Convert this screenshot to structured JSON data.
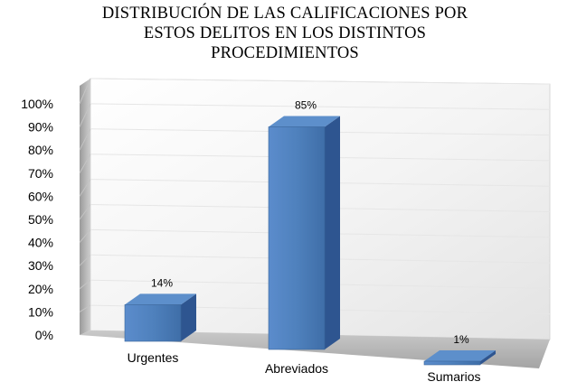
{
  "chart_data": {
    "type": "bar",
    "title_lines": [
      "DISTRIBUCIÓN DE LAS CALIFICACIONES POR",
      "ESTOS DELITOS EN  LOS DISTINTOS",
      "PROCEDIMIENTOS"
    ],
    "categories": [
      "Urgentes",
      "Abreviados",
      "Sumarios"
    ],
    "values": [
      14,
      85,
      1
    ],
    "data_labels": [
      "14%",
      "85%",
      "1%"
    ],
    "ylim": [
      0,
      100
    ],
    "ytick_values": [
      0,
      10,
      20,
      30,
      40,
      50,
      60,
      70,
      80,
      90,
      100
    ],
    "ytick_labels": [
      "0%",
      "10%",
      "20%",
      "30%",
      "40%",
      "50%",
      "60%",
      "70%",
      "80%",
      "90%",
      "100%"
    ],
    "grid": true,
    "three_d": true,
    "colors": {
      "bar_front": "#4f81bd",
      "bar_top": "#5d8fcb",
      "bar_side": "#2e5590",
      "grid": "#e6e6e6"
    }
  }
}
